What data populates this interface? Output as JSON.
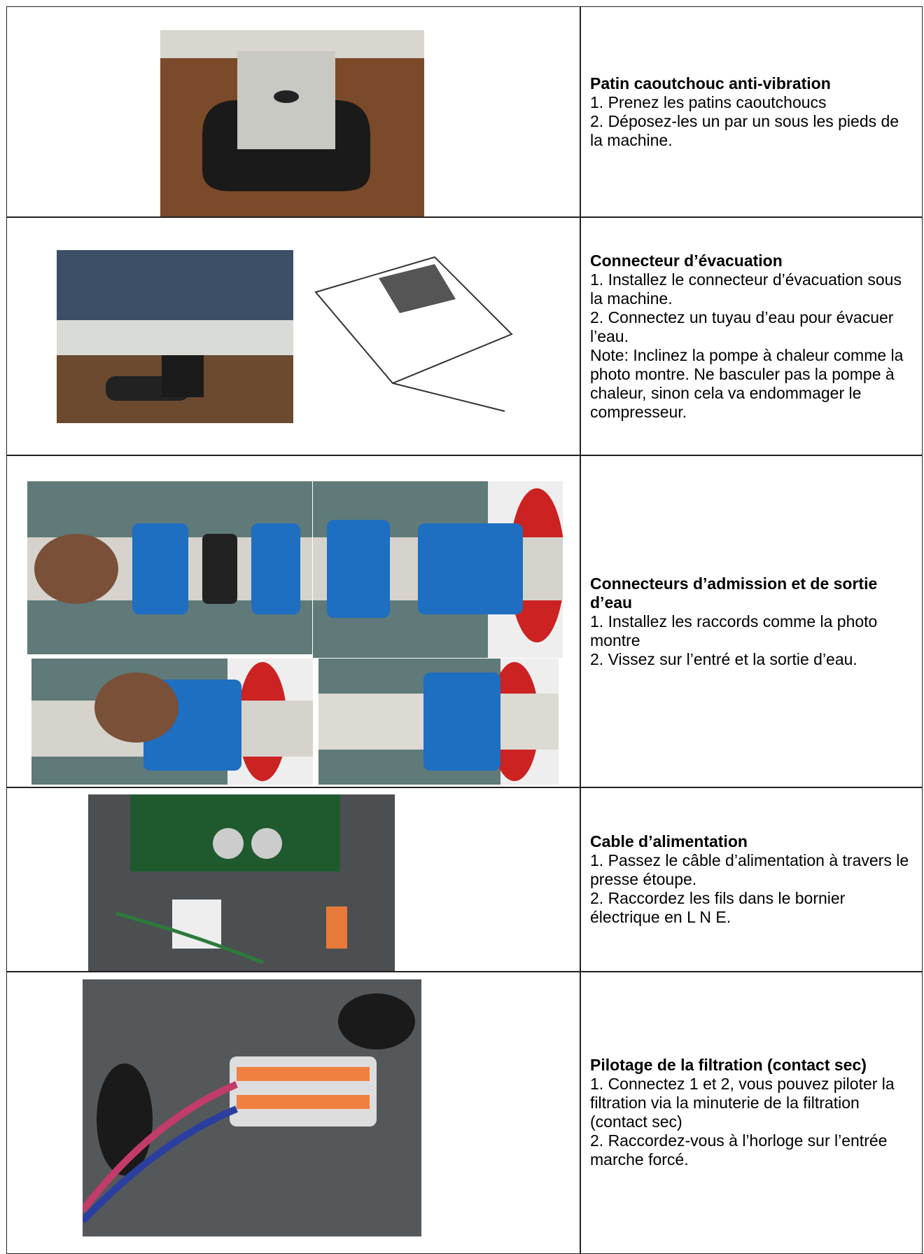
{
  "table": {
    "rows": [
      {
        "title": "Patin caoutchouc anti-vibration",
        "lines": [
          "1. Prenez les patins caoutchoucs",
          "2. Déposez-les un par un sous les pieds de la machine."
        ]
      },
      {
        "title": "Connecteur d’évacuation",
        "lines": [
          "1. Installez le connecteur d’évacuation sous la machine.",
          "2. Connectez un tuyau d’eau pour évacuer l’eau.",
          "Note: Inclinez la pompe à chaleur comme la photo montre. Ne basculer pas la pompe à chaleur, sinon cela va endommager le compresseur."
        ]
      },
      {
        "title": "Connecteurs d’admission et de sortie d’eau",
        "lines": [
          "1. Installez les raccords comme la photo montre",
          "2. Vissez sur l’entré et la sortie d’eau."
        ]
      },
      {
        "title": "Cable d’alimentation",
        "lines": [
          "1. Passez le câble d’alimentation à travers le presse étoupe.",
          "2. Raccordez les fils dans le bornier électrique en L N E."
        ]
      },
      {
        "title": "Pilotage de la filtration (contact sec)",
        "lines": [
          "1. Connectez 1 et 2, vous pouvez piloter la filtration via la minuterie de la filtration (contact sec)",
          "2. Raccordez-vous  à l’horloge sur l’entrée marche forcé."
        ]
      }
    ]
  }
}
